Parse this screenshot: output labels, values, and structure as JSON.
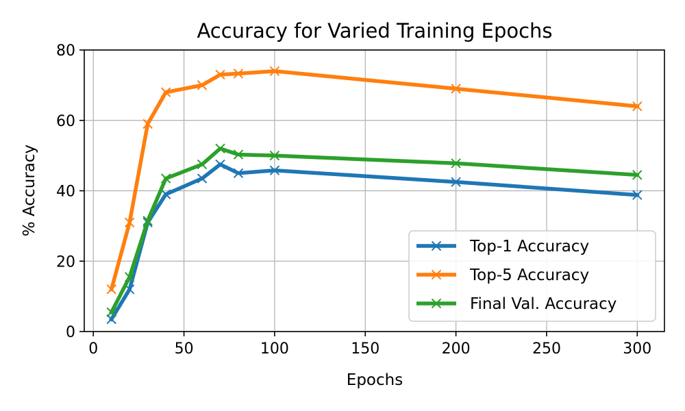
{
  "chart_data": {
    "type": "line",
    "title": "Accuracy for Varied Training Epochs",
    "xlabel": "Epochs",
    "ylabel": "% Accuracy",
    "xlim": [
      -5,
      315
    ],
    "ylim": [
      0,
      80
    ],
    "xticks": [
      0,
      50,
      100,
      150,
      200,
      250,
      300
    ],
    "yticks": [
      0,
      20,
      40,
      60,
      80
    ],
    "grid": true,
    "legend_position": "lower-right",
    "x": [
      10,
      20,
      30,
      40,
      60,
      70,
      80,
      100,
      200,
      300
    ],
    "series": [
      {
        "name": "Top-1 Accuracy",
        "color": "#1f77b4",
        "marker": "x",
        "values": [
          3.5,
          12,
          31,
          39,
          43.5,
          47.5,
          45,
          45.8,
          42.5,
          38.8
        ]
      },
      {
        "name": "Top-5 Accuracy",
        "color": "#ff7f0e",
        "marker": "x",
        "values": [
          12,
          31,
          59,
          68,
          70,
          73,
          73.3,
          74,
          69,
          64
        ]
      },
      {
        "name": "Final Val. Accuracy",
        "color": "#2ca02c",
        "marker": "x",
        "values": [
          5.5,
          15.5,
          31.5,
          43.5,
          47.5,
          52,
          50.3,
          50,
          47.8,
          44.5
        ]
      }
    ]
  }
}
